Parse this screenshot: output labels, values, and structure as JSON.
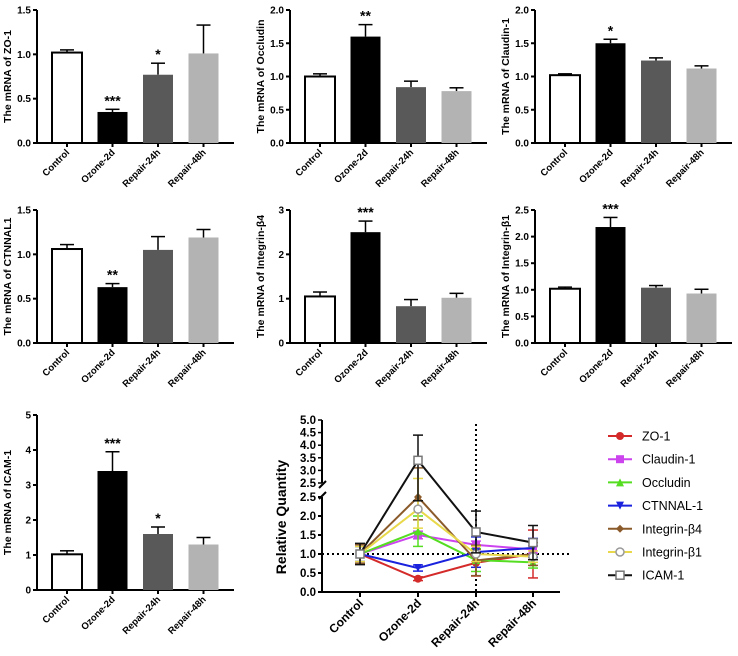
{
  "chart_data": [
    {
      "type": "bar",
      "ylabel": "The mRNA of ZO-1",
      "categories": [
        "Control",
        "Ozone-2d",
        "Repair-24h",
        "Repair-48h"
      ],
      "values": [
        1.02,
        0.35,
        0.77,
        1.01
      ],
      "errors": [
        0.03,
        0.03,
        0.13,
        0.32
      ],
      "significance": [
        "",
        "***",
        "*",
        ""
      ],
      "ylim": [
        0,
        1.5
      ],
      "yticks": [
        "0.0",
        "0.5",
        "1.0",
        "1.5"
      ]
    },
    {
      "type": "bar",
      "ylabel": "The mRNA of Occludin",
      "categories": [
        "Control",
        "Ozone-2d",
        "Repair-24h",
        "Repair-48h"
      ],
      "values": [
        1.0,
        1.6,
        0.84,
        0.78
      ],
      "errors": [
        0.04,
        0.18,
        0.09,
        0.05
      ],
      "significance": [
        "",
        "**",
        "",
        ""
      ],
      "ylim": [
        0,
        2.0
      ],
      "yticks": [
        "0.0",
        "0.5",
        "1.0",
        "1.5",
        "2.0"
      ]
    },
    {
      "type": "bar",
      "ylabel": "The mRNA of Claudin-1",
      "categories": [
        "Control",
        "Ozone-2d",
        "Repair-24h",
        "Repair-48h"
      ],
      "values": [
        1.02,
        1.5,
        1.24,
        1.12
      ],
      "errors": [
        0.02,
        0.06,
        0.04,
        0.04
      ],
      "significance": [
        "",
        "*",
        "",
        ""
      ],
      "ylim": [
        0,
        2.0
      ],
      "yticks": [
        "0.0",
        "0.5",
        "1.0",
        "1.5",
        "2.0"
      ]
    },
    {
      "type": "bar",
      "ylabel": "The mRNA of CTNNAL1",
      "categories": [
        "Control",
        "Ozone-2d",
        "Repair-24h",
        "Repair-48h"
      ],
      "values": [
        1.06,
        0.63,
        1.05,
        1.19
      ],
      "errors": [
        0.05,
        0.04,
        0.15,
        0.09
      ],
      "significance": [
        "",
        "**",
        "",
        ""
      ],
      "ylim": [
        0,
        1.5
      ],
      "yticks": [
        "0.0",
        "0.5",
        "1.0",
        "1.5"
      ]
    },
    {
      "type": "bar",
      "ylabel": "The mRNA of Integrin-β4",
      "categories": [
        "Control",
        "Ozone-2d",
        "Repair-24h",
        "Repair-48h"
      ],
      "values": [
        1.05,
        2.5,
        0.83,
        1.02
      ],
      "errors": [
        0.1,
        0.25,
        0.15,
        0.1
      ],
      "significance": [
        "",
        "***",
        "",
        ""
      ],
      "ylim": [
        0,
        3
      ],
      "yticks": [
        "0",
        "1",
        "2",
        "3"
      ]
    },
    {
      "type": "bar",
      "ylabel": "The mRNA of Integrin-β1",
      "categories": [
        "Control",
        "Ozone-2d",
        "Repair-24h",
        "Repair-48h"
      ],
      "values": [
        1.02,
        2.18,
        1.04,
        0.93
      ],
      "errors": [
        0.03,
        0.18,
        0.04,
        0.08
      ],
      "significance": [
        "",
        "***",
        "",
        ""
      ],
      "ylim": [
        0,
        2.5
      ],
      "yticks": [
        "0.0",
        "0.5",
        "1.0",
        "1.5",
        "2.0",
        "2.5"
      ]
    },
    {
      "type": "bar",
      "ylabel": "The mRNA of ICAM-1",
      "categories": [
        "Control",
        "Ozone-2d",
        "Repair-24h",
        "Repair-48h"
      ],
      "values": [
        1.02,
        3.4,
        1.6,
        1.3
      ],
      "errors": [
        0.1,
        0.55,
        0.2,
        0.2
      ],
      "significance": [
        "",
        "***",
        "*",
        ""
      ],
      "ylim": [
        0,
        5
      ],
      "yticks": [
        "0",
        "1",
        "2",
        "3",
        "4",
        "5"
      ]
    },
    {
      "type": "line",
      "ylabel": "Relative Quantity",
      "categories": [
        "Control",
        "Ozone-2d",
        "Repair-24h",
        "Repair-48h"
      ],
      "ylim": [
        0,
        5.0
      ],
      "y_axis_break": [
        2.5,
        2.5
      ],
      "yticks_lower": [
        "0.0",
        "0.5",
        "1.0",
        "1.5",
        "2.0",
        "2.5"
      ],
      "yticks_upper": [
        "2.5",
        "3.0",
        "3.5",
        "4.0",
        "4.5",
        "5.0"
      ],
      "reference_line_y": 1.0,
      "reference_line_x": "Repair-24h",
      "legend": "right",
      "series": [
        {
          "name": "ZO-1",
          "color": "#d42a2a",
          "marker": "circle",
          "values": [
            1.0,
            0.35,
            0.77,
            1.0
          ],
          "errors": [
            0.25,
            0.05,
            0.35,
            0.63
          ]
        },
        {
          "name": "Claudin-1",
          "color": "#cc44ee",
          "marker": "square",
          "values": [
            1.0,
            1.5,
            1.24,
            1.12
          ],
          "errors": [
            0.2,
            0.1,
            0.1,
            0.1
          ]
        },
        {
          "name": "Occludin",
          "color": "#55dd22",
          "marker": "triangle-up",
          "values": [
            1.0,
            1.6,
            0.84,
            0.78
          ],
          "errors": [
            0.2,
            0.4,
            0.3,
            0.15
          ]
        },
        {
          "name": "CTNNAL-1",
          "color": "#1a22dd",
          "marker": "triangle-down",
          "values": [
            1.0,
            0.63,
            1.05,
            1.16
          ],
          "errors": [
            0.2,
            0.08,
            0.4,
            0.25
          ]
        },
        {
          "name": "Integrin-β4",
          "color": "#8a5a2a",
          "marker": "diamond",
          "values": [
            1.0,
            2.5,
            0.83,
            1.0
          ],
          "errors": [
            0.25,
            0.6,
            0.4,
            0.3
          ]
        },
        {
          "name": "Integrin-β1",
          "color": "#e8d84a",
          "marker": "circle-open",
          "values": [
            1.0,
            2.18,
            1.0,
            0.93
          ],
          "errors": [
            0.2,
            0.5,
            0.2,
            0.15
          ]
        },
        {
          "name": "ICAM-1",
          "color": "#111111",
          "marker": "square-open",
          "values": [
            1.0,
            3.4,
            1.58,
            1.3
          ],
          "errors": [
            0.28,
            1.0,
            0.55,
            0.45
          ]
        }
      ]
    }
  ]
}
